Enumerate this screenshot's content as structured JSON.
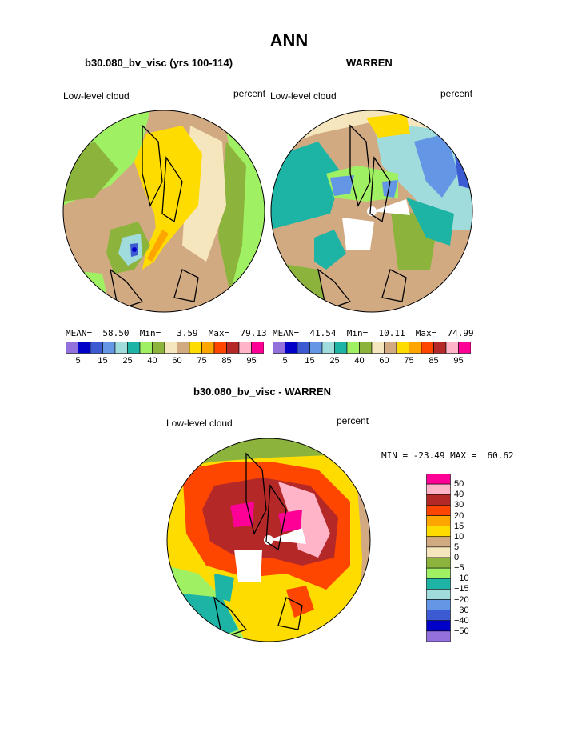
{
  "figure": {
    "title": "ANN"
  },
  "panels": [
    {
      "title": "b30.080_bv_visc (yrs 100-114)",
      "left_label": "Low-level cloud",
      "right_label": "percent",
      "stats": "MEAN=  58.50  Min=   3.59  Max=  79.13"
    },
    {
      "title": "WARREN",
      "left_label": "Low-level cloud",
      "right_label": "percent",
      "stats": "MEAN=  41.54  Min=  10.11  Max=  74.99"
    },
    {
      "title": "b30.080_bv_visc - WARREN",
      "left_label": "Low-level cloud",
      "right_label": "percent",
      "stats": "MIN = -23.49 MAX =  60.62"
    }
  ],
  "colorbar_top": {
    "colors": [
      "#9370db",
      "#0000c8",
      "#3c5ad2",
      "#6496e6",
      "#a0dcdc",
      "#1eb4a5",
      "#a0f064",
      "#8cb43c",
      "#f5e6be",
      "#d2aa82",
      "#ffdc00",
      "#ffa500",
      "#ff4600",
      "#b42828",
      "#ffb4c8",
      "#ff0096"
    ],
    "labels": [
      "5",
      "15",
      "25",
      "40",
      "60",
      "75",
      "85",
      "95"
    ]
  },
  "colorbar_diff": {
    "colors": [
      "#ff0096",
      "#ffb4c8",
      "#b42828",
      "#ff4600",
      "#ffa500",
      "#ffdc00",
      "#d2aa82",
      "#f5e6be",
      "#8cb43c",
      "#a0f064",
      "#1eb4a5",
      "#a0dcdc",
      "#6496e6",
      "#3c5ad2",
      "#0000c8",
      "#9370db"
    ],
    "labels": [
      "50",
      "40",
      "30",
      "20",
      "15",
      "10",
      "5",
      "0",
      "−5",
      "−10",
      "−15",
      "−20",
      "−30",
      "−40",
      "−50"
    ]
  },
  "chart_data": [
    {
      "type": "heatmap",
      "title": "b30.080_bv_visc (yrs 100-114)",
      "variable": "Low-level cloud",
      "units": "percent",
      "projection": "polar stereographic (north pole)",
      "mean": 58.5,
      "min": 3.59,
      "max": 79.13,
      "levels": [
        5,
        10,
        15,
        20,
        25,
        30,
        40,
        50,
        60,
        65,
        75,
        80,
        85,
        90,
        95
      ]
    },
    {
      "type": "heatmap",
      "title": "WARREN",
      "variable": "Low-level cloud",
      "units": "percent",
      "projection": "polar stereographic (north pole)",
      "mean": 41.54,
      "min": 10.11,
      "max": 74.99,
      "levels": [
        5,
        10,
        15,
        20,
        25,
        30,
        40,
        50,
        60,
        65,
        75,
        80,
        85,
        90,
        95
      ]
    },
    {
      "type": "heatmap",
      "title": "b30.080_bv_visc - WARREN",
      "variable": "Low-level cloud",
      "units": "percent",
      "projection": "polar stereographic (north pole)",
      "min": -23.49,
      "max": 60.62,
      "levels": [
        -50,
        -40,
        -30,
        -20,
        -15,
        -10,
        -5,
        0,
        5,
        10,
        15,
        20,
        30,
        40,
        50
      ]
    }
  ]
}
